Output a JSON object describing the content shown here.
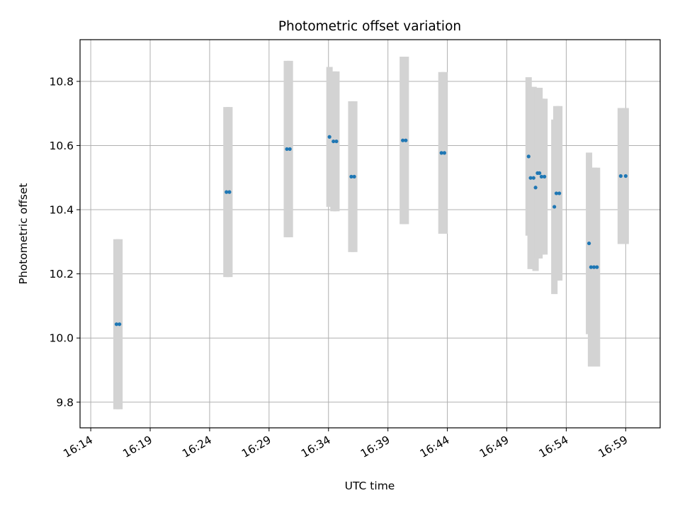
{
  "chart_data": {
    "type": "scatter",
    "title": "Photometric offset variation",
    "xlabel": "UTC time",
    "ylabel": "Photometric offset",
    "x_axis": "time (HH:MM, UTC)",
    "xlim": [
      "16:13:00",
      "16:62:00"
    ],
    "xlim_minutes": [
      13.1,
      61.9
    ],
    "ylim": [
      9.72,
      10.93
    ],
    "x_ticks": [
      "16:14",
      "16:19",
      "16:24",
      "16:29",
      "16:34",
      "16:39",
      "16:44",
      "16:49",
      "16:54",
      "16:59"
    ],
    "y_ticks": [
      "9.8",
      "10.0",
      "10.2",
      "10.4",
      "10.6",
      "10.8"
    ],
    "y_tick_values": [
      9.8,
      10.0,
      10.2,
      10.4,
      10.6,
      10.8
    ],
    "grid": true,
    "colors": {
      "points": "#1f77b4",
      "errorbars": "#d3d3d3",
      "grid": "#b0b0b0"
    },
    "points": [
      {
        "t": "16:16:10",
        "y": 10.043,
        "err": 0.265
      },
      {
        "t": "16:16:25",
        "y": 10.043,
        "err": 0.265
      },
      {
        "t": "16:25:25",
        "y": 10.455,
        "err": 0.265
      },
      {
        "t": "16:25:40",
        "y": 10.455,
        "err": 0.265
      },
      {
        "t": "16:30:30",
        "y": 10.589,
        "err": 0.275
      },
      {
        "t": "16:30:45",
        "y": 10.589,
        "err": 0.275
      },
      {
        "t": "16:34:05",
        "y": 10.627,
        "err": 0.218
      },
      {
        "t": "16:34:25",
        "y": 10.613,
        "err": 0.218
      },
      {
        "t": "16:34:40",
        "y": 10.613,
        "err": 0.218
      },
      {
        "t": "16:35:55",
        "y": 10.503,
        "err": 0.235
      },
      {
        "t": "16:36:10",
        "y": 10.503,
        "err": 0.235
      },
      {
        "t": "16:40:15",
        "y": 10.616,
        "err": 0.261
      },
      {
        "t": "16:40:30",
        "y": 10.616,
        "err": 0.261
      },
      {
        "t": "16:43:30",
        "y": 10.577,
        "err": 0.252
      },
      {
        "t": "16:43:45",
        "y": 10.577,
        "err": 0.252
      },
      {
        "t": "16:50:50",
        "y": 10.566,
        "err": 0.247
      },
      {
        "t": "16:51:00",
        "y": 10.499,
        "err": 0.284
      },
      {
        "t": "16:51:15",
        "y": 10.499,
        "err": 0.284
      },
      {
        "t": "16:51:25",
        "y": 10.469,
        "err": 0.26
      },
      {
        "t": "16:51:35",
        "y": 10.514,
        "err": 0.266
      },
      {
        "t": "16:51:45",
        "y": 10.514,
        "err": 0.266
      },
      {
        "t": "16:51:55",
        "y": 10.503,
        "err": 0.243
      },
      {
        "t": "16:52:10",
        "y": 10.503,
        "err": 0.243
      },
      {
        "t": "16:53:00",
        "y": 10.409,
        "err": 0.272
      },
      {
        "t": "16:53:10",
        "y": 10.451,
        "err": 0.272
      },
      {
        "t": "16:53:25",
        "y": 10.451,
        "err": 0.272
      },
      {
        "t": "16:55:55",
        "y": 10.295,
        "err": 0.283
      },
      {
        "t": "16:56:05",
        "y": 10.221,
        "err": 0.31
      },
      {
        "t": "16:56:20",
        "y": 10.221,
        "err": 0.31
      },
      {
        "t": "16:56:35",
        "y": 10.221,
        "err": 0.31
      },
      {
        "t": "16:58:35",
        "y": 10.505,
        "err": 0.212
      },
      {
        "t": "16:59:00",
        "y": 10.505,
        "err": 0.212
      }
    ]
  }
}
